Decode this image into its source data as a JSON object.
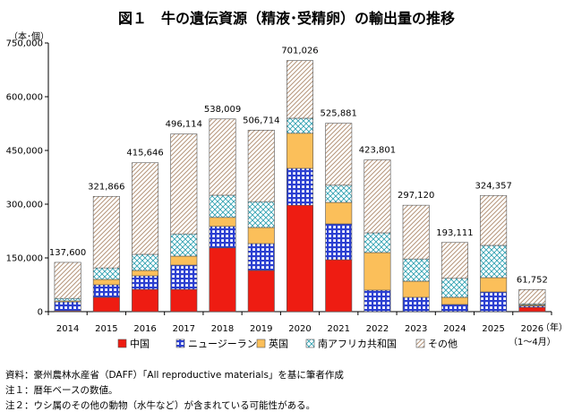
{
  "chart_data": {
    "type": "bar",
    "stacked": true,
    "title": "図１　牛の遺伝資源（精液･受精卵）の輸出量の推移",
    "ylabel": "（本･個）",
    "xunit": "（年）",
    "ylim": [
      0,
      750000
    ],
    "yticks": [
      "0",
      "150,000",
      "300,000",
      "450,000",
      "600,000",
      "750,000"
    ],
    "ytick_values": [
      0,
      150000,
      300000,
      450000,
      600000,
      750000
    ],
    "categories": [
      "2014",
      "2015",
      "2016",
      "2017",
      "2018",
      "2019",
      "2020",
      "2021",
      "2022",
      "2023",
      "2024",
      "2025",
      "2026"
    ],
    "category_sublabels": [
      "",
      "",
      "",
      "",
      "",
      "",
      "",
      "",
      "",
      "",
      "",
      "",
      "（1～4月）"
    ],
    "totals": [
      137600,
      321866,
      415646,
      496114,
      538009,
      506714,
      701026,
      525881,
      423801,
      297120,
      193111,
      324357,
      61752
    ],
    "total_labels": [
      "137,600",
      "321,866",
      "415,646",
      "496,114",
      "538,009",
      "506,714",
      "701,026",
      "525,881",
      "423,801",
      "297,120",
      "193,111",
      "324,357",
      "61,752"
    ],
    "series": [
      {
        "name": "中国",
        "color": "#ee1c12",
        "pattern": "solid",
        "values": [
          2000,
          40000,
          62000,
          62000,
          178000,
          115000,
          297000,
          145000,
          0,
          0,
          0,
          0,
          12000
        ]
      },
      {
        "name": "ニュージーランド",
        "color": "#2b3fd1",
        "pattern": "grid",
        "values": [
          25000,
          35000,
          38000,
          68000,
          60000,
          75000,
          103000,
          100000,
          60000,
          40000,
          20000,
          55000,
          4000
        ]
      },
      {
        "name": "英国",
        "color": "#fbbf5a",
        "pattern": "solid",
        "values": [
          3000,
          15000,
          15000,
          25000,
          25000,
          45000,
          98000,
          60000,
          105000,
          45000,
          20000,
          40000,
          3000
        ]
      },
      {
        "name": "南アフリカ共和国",
        "color": "#2a9fb0",
        "pattern": "cross",
        "values": [
          7000,
          32000,
          45000,
          62000,
          62000,
          72000,
          42000,
          48000,
          55000,
          62000,
          53000,
          90000,
          3000
        ]
      },
      {
        "name": "その他",
        "color": "#b5957a",
        "pattern": "diagonal",
        "values": [
          100600,
          199866,
          255646,
          279114,
          213009,
          199714,
          161026,
          172881,
          203801,
          150120,
          100111,
          139357,
          39752
        ]
      }
    ],
    "legend_position": "bottom",
    "grid": false
  },
  "notes": [
    "資料：豪州農林水産省（DAFF）「All reproductive materials」を基に筆者作成",
    "注１：暦年ベースの数値。",
    "注２：ウシ属のその他の動物（水牛など）が含まれている可能性がある。"
  ]
}
